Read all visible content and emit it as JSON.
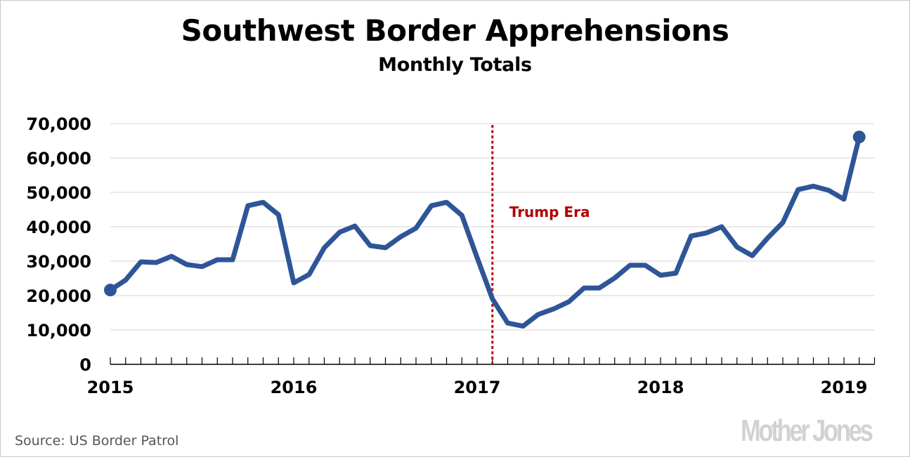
{
  "chart_data": {
    "type": "line",
    "title": "Southwest Border Apprehensions",
    "subtitle": "Monthly Totals",
    "xlabel": "",
    "ylabel": "",
    "ylim": [
      0,
      70000
    ],
    "yticks": [
      0,
      10000,
      20000,
      30000,
      40000,
      50000,
      60000,
      70000
    ],
    "ytick_labels": [
      "0",
      "10,000",
      "20,000",
      "30,000",
      "40,000",
      "50,000",
      "60,000",
      "70,000"
    ],
    "x_tick_labels": [
      {
        "label": "2015",
        "month_index": 0
      },
      {
        "label": "2016",
        "month_index": 12
      },
      {
        "label": "2017",
        "month_index": 24
      },
      {
        "label": "2018",
        "month_index": 36
      },
      {
        "label": "2019",
        "month_index": 48
      }
    ],
    "x_range_months": [
      0,
      50
    ],
    "grid": "horizontal",
    "series": [
      {
        "name": "Southwest Border Apprehensions",
        "color": "#2e5597",
        "values": [
          21600,
          24500,
          29800,
          29600,
          31400,
          29000,
          28400,
          30400,
          30400,
          46100,
          47100,
          43500,
          23700,
          26100,
          33900,
          38400,
          40200,
          34500,
          33900,
          37100,
          39600,
          46100,
          47100,
          43300,
          31000,
          19000,
          12000,
          11100,
          14500,
          16100,
          18200,
          22200,
          22200,
          25100,
          28800,
          28800,
          25900,
          26500,
          37300,
          38200,
          40000,
          34100,
          31600,
          36700,
          41200,
          50800,
          51800,
          50600,
          48000,
          66100
        ],
        "endpoint_markers": true
      }
    ],
    "annotations": [
      {
        "type": "vline",
        "month_index": 25,
        "color": "#c00000",
        "style": "dotted",
        "label": "Trump Era"
      }
    ]
  },
  "footer": {
    "source": "Source: US Border Patrol",
    "logo": "Mother Jones"
  }
}
